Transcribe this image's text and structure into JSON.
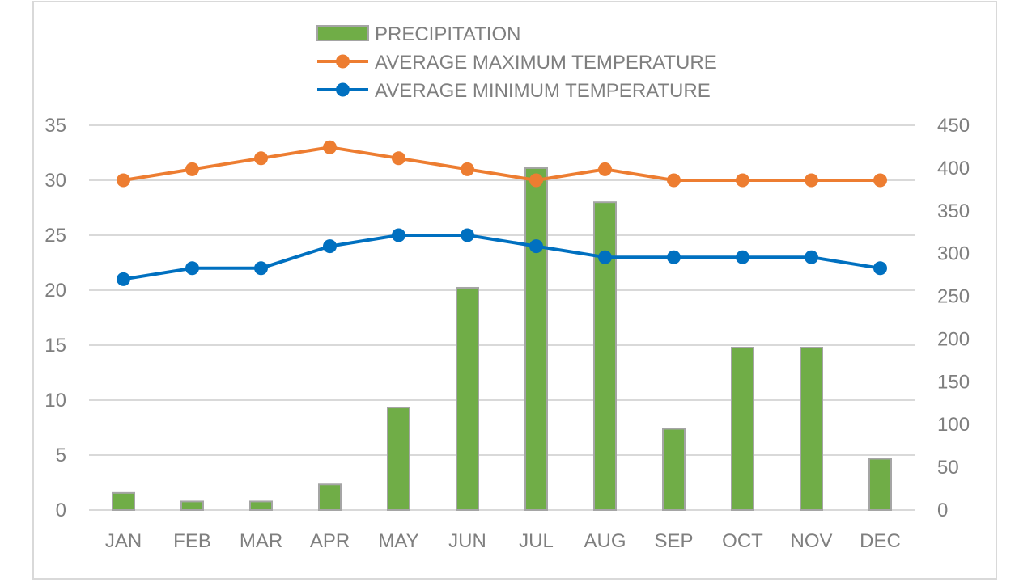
{
  "chart_data": {
    "type": "bar",
    "categories": [
      "JAN",
      "FEB",
      "MAR",
      "APR",
      "MAY",
      "JUN",
      "JUL",
      "AUG",
      "SEP",
      "OCT",
      "NOV",
      "DEC"
    ],
    "series": [
      {
        "name": "PRECIPITATION",
        "type": "bar",
        "axis": "right",
        "color": "#70ad47",
        "values": [
          20,
          10,
          10,
          30,
          120,
          260,
          400,
          360,
          95,
          190,
          190,
          60
        ]
      },
      {
        "name": "AVERAGE MAXIMUM TEMPERATURE",
        "type": "line",
        "axis": "left",
        "color": "#ed7d31",
        "values": [
          30,
          31,
          32,
          33,
          32,
          31,
          30,
          31,
          30,
          30,
          30,
          30
        ]
      },
      {
        "name": "AVERAGE MINIMUM TEMPERATURE",
        "type": "line",
        "axis": "left",
        "color": "#0070c0",
        "values": [
          21,
          22,
          22,
          24,
          25,
          25,
          24,
          23,
          23,
          23,
          23,
          22
        ]
      }
    ],
    "y_left": {
      "min": 0,
      "max": 35,
      "ticks": [
        "0",
        "5",
        "10",
        "15",
        "20",
        "25",
        "30",
        "35"
      ]
    },
    "y_right": {
      "min": 0,
      "max": 450,
      "ticks": [
        "0",
        "50",
        "100",
        "150",
        "200",
        "250",
        "300",
        "350",
        "400",
        "450"
      ]
    },
    "grid": true,
    "legend_position": "top-center",
    "bar_border_color": "#a5a5a5",
    "gridline_color": "#d9d9d9",
    "text_color": "#7f7f7f"
  }
}
